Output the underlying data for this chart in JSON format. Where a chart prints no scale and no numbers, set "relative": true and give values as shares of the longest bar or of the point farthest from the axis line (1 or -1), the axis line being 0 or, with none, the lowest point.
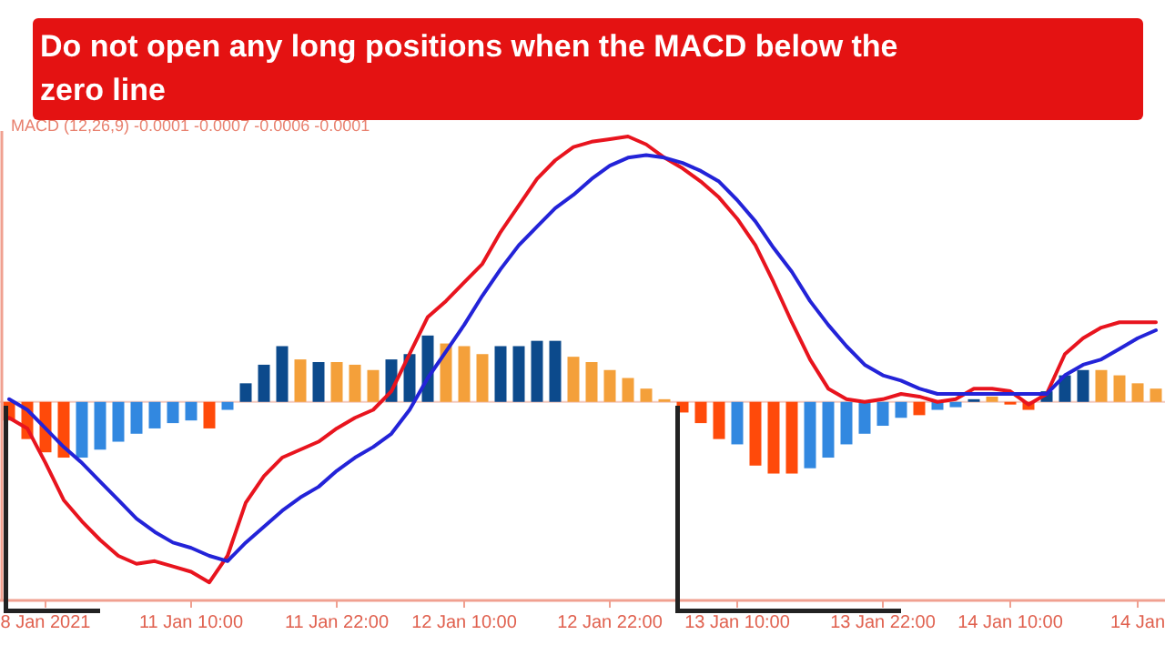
{
  "chart_data": {
    "type": "bar",
    "title": "Do not open any long positions when the MACD below the zero line",
    "annotations": [
      "MACD (12,26,9) -0.0001 -0.0007 -0.0006 -0.0001"
    ],
    "relative": true,
    "categories": [
      null,
      null,
      "8 Jan 2021",
      null,
      null,
      null,
      null,
      null,
      null,
      null,
      "11 Jan 10:00",
      null,
      null,
      null,
      null,
      null,
      null,
      null,
      "11 Jan 22:00",
      null,
      null,
      null,
      null,
      null,
      null,
      "12 Jan 10:00",
      null,
      null,
      null,
      null,
      null,
      null,
      null,
      "12 Jan 22:00",
      null,
      null,
      null,
      null,
      null,
      null,
      "13 Jan 10:00",
      null,
      null,
      null,
      null,
      null,
      null,
      null,
      "13 Jan 22:00",
      null,
      null,
      null,
      null,
      null,
      null,
      "14 Jan 10:00",
      null,
      null,
      null,
      null,
      null,
      null,
      "14 Jan",
      null
    ],
    "series": [
      {
        "values": [
          -0.07,
          -0.14,
          -0.19,
          -0.21,
          -0.21,
          -0.18,
          -0.15,
          -0.12,
          -0.1,
          -0.08,
          -0.07,
          -0.1,
          -0.03,
          0.07,
          0.14,
          0.21,
          0.16,
          0.15,
          0.15,
          0.14,
          0.12,
          0.16,
          0.18,
          0.25,
          0.22,
          0.21,
          0.18,
          0.21,
          0.21,
          0.23,
          0.23,
          0.17,
          0.15,
          0.12,
          0.09,
          0.05,
          0.01,
          -0.04,
          -0.08,
          -0.14,
          -0.16,
          -0.24,
          -0.27,
          -0.27,
          -0.25,
          -0.21,
          -0.16,
          -0.12,
          -0.09,
          -0.06,
          -0.05,
          -0.03,
          -0.02,
          0.01,
          0.02,
          -0.01,
          -0.03,
          0.04,
          0.1,
          0.12,
          0.12,
          0.1,
          0.07,
          0.05
        ],
        "colors": [
          "#ff4a0a",
          "#ff4a0a",
          "#ff4a0a",
          "#ff4a0a",
          "#3288e0",
          "#3288e0",
          "#3288e0",
          "#3288e0",
          "#3288e0",
          "#3288e0",
          "#3288e0",
          "#ff4a0a",
          "#3288e0",
          "#0c4a8c",
          "#0c4a8c",
          "#0c4a8c",
          "#f4a03a",
          "#0c4a8c",
          "#f4a03a",
          "#f4a03a",
          "#f4a03a",
          "#0c4a8c",
          "#0c4a8c",
          "#0c4a8c",
          "#f4a03a",
          "#f4a03a",
          "#f4a03a",
          "#0c4a8c",
          "#0c4a8c",
          "#0c4a8c",
          "#0c4a8c",
          "#f4a03a",
          "#f4a03a",
          "#f4a03a",
          "#f4a03a",
          "#f4a03a",
          "#f4a03a",
          "#ff4a0a",
          "#ff4a0a",
          "#ff4a0a",
          "#3288e0",
          "#ff4a0a",
          "#ff4a0a",
          "#ff4a0a",
          "#3288e0",
          "#3288e0",
          "#3288e0",
          "#3288e0",
          "#3288e0",
          "#3288e0",
          "#ff4a0a",
          "#3288e0",
          "#3288e0",
          "#0c4a8c",
          "#f4a03a",
          "#ff4a0a",
          "#ff4a0a",
          "#0c4a8c",
          "#0c4a8c",
          "#0c4a8c",
          "#f4a03a",
          "#f4a03a",
          "#f4a03a",
          "#f4a03a"
        ]
      },
      {
        "type": "line",
        "color": "#e8141e",
        "values": [
          -0.06,
          -0.1,
          -0.23,
          -0.37,
          -0.45,
          -0.52,
          -0.58,
          -0.61,
          -0.6,
          -0.62,
          -0.64,
          -0.68,
          -0.58,
          -0.38,
          -0.28,
          -0.21,
          -0.18,
          -0.15,
          -0.1,
          -0.06,
          -0.03,
          0.04,
          0.18,
          0.32,
          0.38,
          0.45,
          0.52,
          0.64,
          0.74,
          0.84,
          0.91,
          0.96,
          0.98,
          0.99,
          1.0,
          0.97,
          0.92,
          0.88,
          0.83,
          0.77,
          0.69,
          0.59,
          0.45,
          0.3,
          0.16,
          0.05,
          0.01,
          0.0,
          0.01,
          0.03,
          0.02,
          0.0,
          0.01,
          0.05,
          0.05,
          0.04,
          -0.01,
          0.03,
          0.18,
          0.24,
          0.28,
          0.3,
          0.3,
          0.3
        ]
      },
      {
        "type": "line",
        "color": "#2323d8",
        "values": [
          0.01,
          -0.03,
          -0.1,
          -0.17,
          -0.23,
          -0.3,
          -0.37,
          -0.44,
          -0.49,
          -0.53,
          -0.55,
          -0.58,
          -0.6,
          -0.53,
          -0.47,
          -0.41,
          -0.36,
          -0.32,
          -0.26,
          -0.21,
          -0.17,
          -0.12,
          -0.03,
          0.09,
          0.19,
          0.29,
          0.4,
          0.5,
          0.59,
          0.66,
          0.73,
          0.78,
          0.84,
          0.89,
          0.92,
          0.93,
          0.92,
          0.9,
          0.87,
          0.83,
          0.76,
          0.68,
          0.58,
          0.49,
          0.38,
          0.29,
          0.21,
          0.14,
          0.1,
          0.08,
          0.05,
          0.03,
          0.03,
          0.03,
          0.03,
          0.03,
          0.03,
          0.03,
          0.1,
          0.14,
          0.16,
          0.2,
          0.24,
          0.27
        ]
      }
    ],
    "ref_lines": [
      {
        "axis": "y",
        "value": 0,
        "color": "#f3c9bd"
      }
    ],
    "line_style": "solid",
    "marker": "none",
    "grid": false
  }
}
